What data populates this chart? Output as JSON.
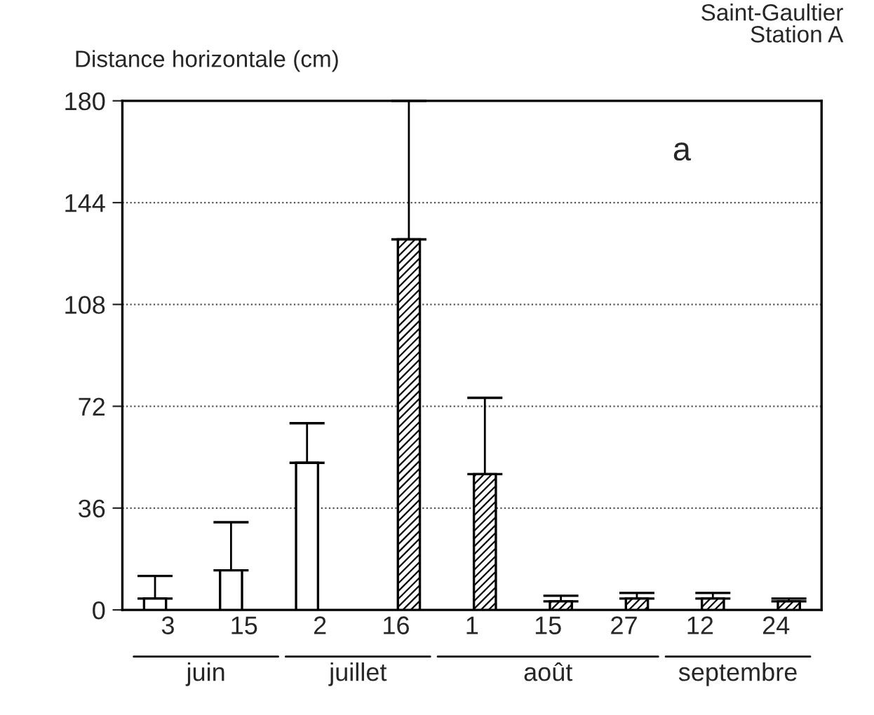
{
  "chart_data": {
    "type": "bar",
    "title": "Saint-Gaultier\nStation A",
    "ylabel": "Distance horizontale (cm)",
    "categories": [
      "3",
      "15",
      "2",
      "16",
      "1",
      "15",
      "27",
      "12",
      "24"
    ],
    "series": [
      {
        "color": "#ffffff",
        "values": [
          4,
          14,
          52,
          null,
          null,
          null,
          null,
          null,
          null
        ],
        "errors": [
          [
            4,
            12
          ],
          [
            14,
            31
          ],
          [
            52,
            66
          ],
          null,
          null,
          null,
          null,
          null,
          null
        ]
      },
      {
        "color": "#000000",
        "values": [
          null,
          null,
          null,
          131,
          48,
          3,
          4,
          4,
          3
        ],
        "errors": [
          null,
          null,
          null,
          [
            131,
            180
          ],
          [
            48,
            75
          ],
          [
            3,
            5
          ],
          [
            4,
            6
          ],
          [
            4,
            6
          ],
          [
            3,
            4
          ]
        ]
      }
    ],
    "annotations": [
      "a",
      "juin",
      "juillet",
      "août",
      "septembre"
    ],
    "ylim": [
      0,
      180
    ],
    "yticks": [
      0,
      36,
      72,
      108,
      144,
      180
    ],
    "grid": "y",
    "legend": false
  }
}
